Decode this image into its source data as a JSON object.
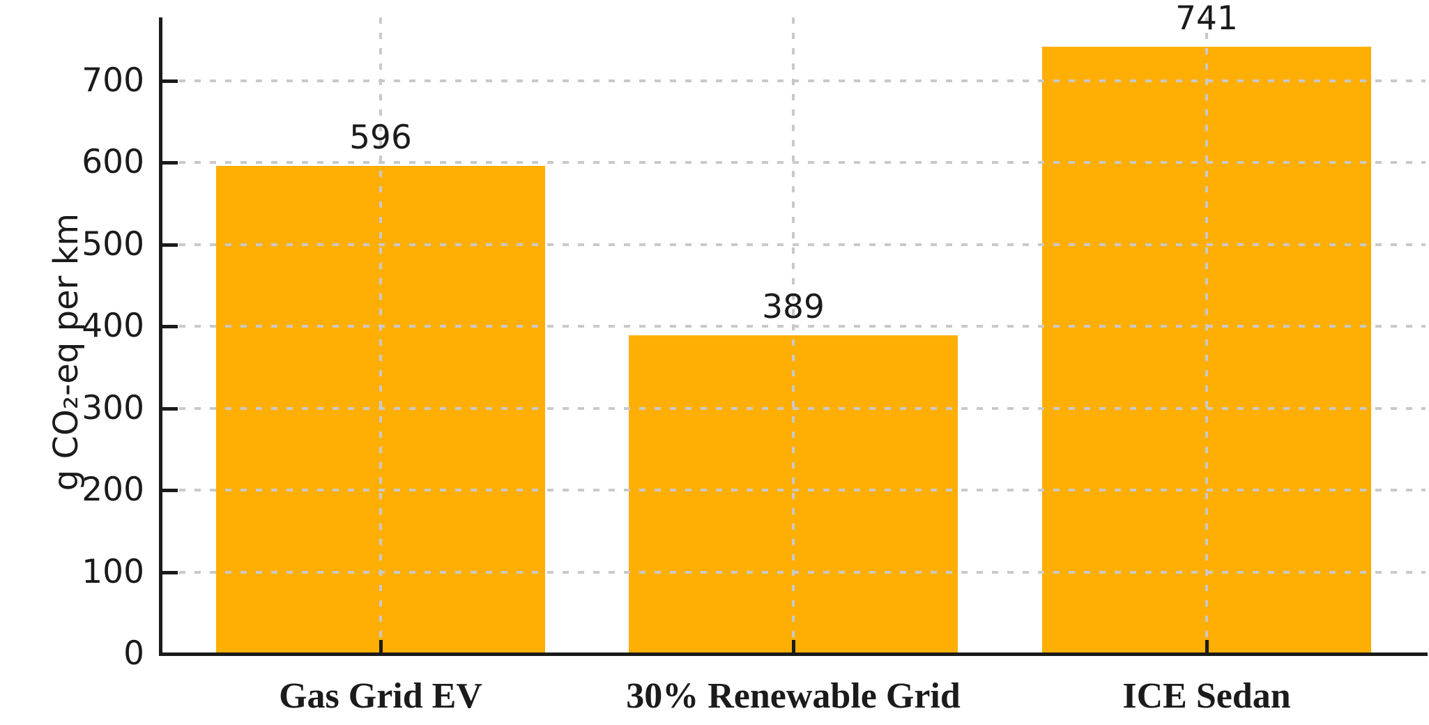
{
  "chart_data": {
    "type": "bar",
    "title": "",
    "categories": [
      "Gas Grid EV",
      "30% Renewable Grid",
      "ICE Sedan"
    ],
    "values": [
      596,
      389,
      741
    ],
    "value_labels": [
      "596",
      "389",
      "741"
    ],
    "xlabel": "",
    "ylabel": "g CO₂-eq per km",
    "ylim": [
      0,
      780
    ],
    "yticks": [
      0,
      100,
      200,
      300,
      400,
      500,
      600,
      700
    ],
    "legend": null,
    "grid": {
      "horizontal": true,
      "vertical": true,
      "style": "dashed"
    },
    "colors": {
      "bar": "#FFAE03",
      "grid": "#c9c9c9",
      "axis": "#1b1b1b",
      "text": "#1b1b1b",
      "background": "#ffffff"
    }
  }
}
